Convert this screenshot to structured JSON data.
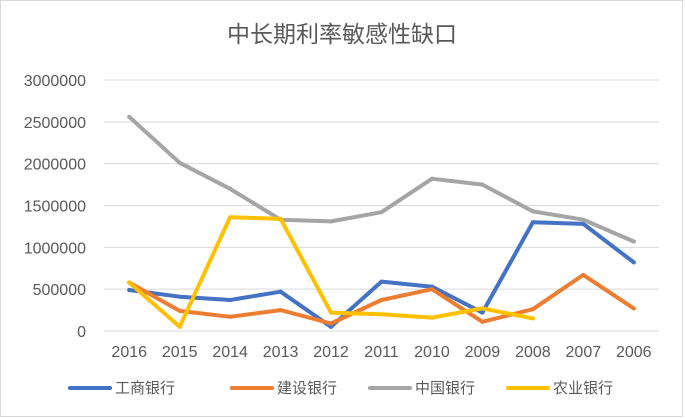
{
  "chart_data": {
    "type": "line",
    "title": "中长期利率敏感性缺口",
    "categories": [
      "2016",
      "2015",
      "2014",
      "2013",
      "2012",
      "2011",
      "2010",
      "2009",
      "2008",
      "2007",
      "2006"
    ],
    "ylim": [
      0,
      3000000
    ],
    "yticks": [
      "0",
      "500000",
      "1000000",
      "1500000",
      "2000000",
      "2500000",
      "3000000"
    ],
    "grid": true,
    "legend_position": "bottom",
    "series": [
      {
        "name": "工商银行",
        "color": "#4472C4",
        "values": [
          490000,
          410000,
          370000,
          470000,
          50000,
          590000,
          530000,
          220000,
          1300000,
          1280000,
          820000
        ]
      },
      {
        "name": "建设银行",
        "color": "#ED7D31",
        "values": [
          580000,
          240000,
          170000,
          250000,
          90000,
          370000,
          500000,
          110000,
          260000,
          670000,
          270000
        ]
      },
      {
        "name": "中国银行",
        "color": "#A5A5A5",
        "values": [
          2560000,
          2010000,
          1700000,
          1330000,
          1310000,
          1420000,
          1820000,
          1750000,
          1430000,
          1330000,
          1070000
        ]
      },
      {
        "name": "农业银行",
        "color": "#FFC000",
        "values": [
          580000,
          50000,
          1360000,
          1340000,
          220000,
          200000,
          160000,
          270000,
          150000,
          null,
          null
        ]
      }
    ]
  }
}
